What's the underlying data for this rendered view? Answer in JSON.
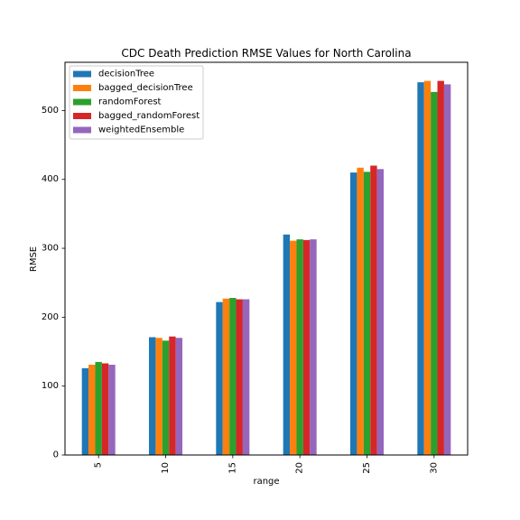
{
  "chart_data": {
    "type": "bar",
    "title": "CDC Death Prediction RMSE Values for North Carolina",
    "xlabel": "range",
    "ylabel": "RMSE",
    "categories": [
      "5",
      "10",
      "15",
      "20",
      "25",
      "30"
    ],
    "ylim": [
      0,
      570
    ],
    "yticks": [
      0,
      100,
      200,
      300,
      400,
      500
    ],
    "grid": false,
    "legend_position": "top-left",
    "series": [
      {
        "name": "decisionTree",
        "color": "#1f77b4",
        "values": [
          126,
          171,
          222,
          320,
          410,
          541
        ]
      },
      {
        "name": "bagged_decisionTree",
        "color": "#ff7f0e",
        "values": [
          131,
          170,
          227,
          311,
          417,
          543
        ]
      },
      {
        "name": "randomForest",
        "color": "#2ca02c",
        "values": [
          135,
          166,
          228,
          313,
          411,
          527
        ]
      },
      {
        "name": "bagged_randomForest",
        "color": "#d62728",
        "values": [
          133,
          172,
          226,
          312,
          420,
          543
        ]
      },
      {
        "name": "weightedEnsemble",
        "color": "#9467bd",
        "values": [
          131,
          170,
          226,
          313,
          415,
          538
        ]
      }
    ]
  }
}
